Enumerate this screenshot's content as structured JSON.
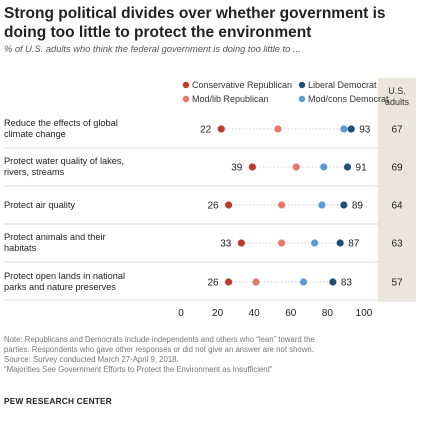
{
  "title_line1": "Strong political divides over whether government is",
  "title_line2": "doing too little to protect the environment",
  "subtitle": "% of U.S. adults who think the federal government is doing too little to ...",
  "chart_data": {
    "type": "scatter",
    "xlim": [
      0,
      100
    ],
    "xticks": [
      0,
      20,
      40,
      60,
      80,
      100
    ],
    "legend_position": "top",
    "adults_header_line1": "U.S.",
    "adults_header_line2": "adults",
    "categories": [
      [
        "Reduce the effects of global",
        "climate change"
      ],
      [
        "Protect water quality of lakes,",
        "rivers, streams"
      ],
      [
        "Protect air quality"
      ],
      [
        "Protect animals and their",
        "habitats"
      ],
      [
        "Protect open lands in national",
        "parks and nature preserves"
      ]
    ],
    "series": [
      {
        "name": "Conservative Republican",
        "color": "#c0392b",
        "values": [
          22,
          39,
          26,
          33,
          26
        ],
        "labeled": true
      },
      {
        "name": "Mod/lib Republican",
        "color": "#e8776c",
        "values": [
          53,
          63,
          55,
          55,
          41
        ],
        "labeled": false
      },
      {
        "name": "Mod/cons Democrat",
        "color": "#5b9bd5",
        "values": [
          89,
          78,
          77,
          73,
          67
        ],
        "labeled": false
      },
      {
        "name": "Liberal Democrat",
        "color": "#1f4e79",
        "values": [
          93,
          91,
          89,
          87,
          83
        ],
        "labeled": true
      }
    ],
    "us_adults": [
      67,
      69,
      64,
      63,
      57
    ]
  },
  "notes": [
    "Note: Republicans and Democrats include independents and others who “lean” toward the",
    "parties. Respondents who gave other responses or did not give an answer are not shown.",
    "Source: Survey conducted March 27-April 9, 2018.",
    "“Majorities See Government Efforts to Protect the Environment as Insufficient”"
  ],
  "footer": "PEW RESEARCH CENTER"
}
